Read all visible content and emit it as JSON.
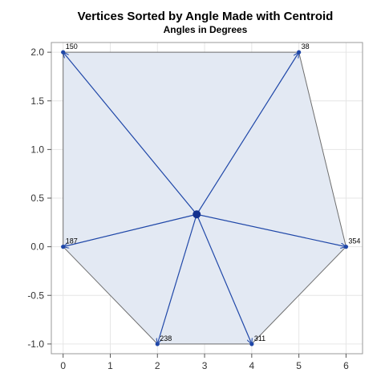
{
  "chart_data": {
    "type": "scatter",
    "title": "Vertices Sorted by Angle Made with Centroid",
    "subtitle": "Angles in Degrees",
    "xlabel": "",
    "ylabel": "",
    "xlim": [
      -0.25,
      6.35
    ],
    "ylim": [
      -1.1,
      2.1
    ],
    "x_ticks": [
      0,
      1,
      2,
      3,
      4,
      5,
      6
    ],
    "y_ticks": [
      -1.0,
      -0.5,
      0.0,
      0.5,
      1.0,
      1.5,
      2.0
    ],
    "x_tick_labels": [
      "0",
      "1",
      "2",
      "3",
      "4",
      "5",
      "6"
    ],
    "y_tick_labels": [
      "-1.0",
      "-0.5",
      "0.0",
      "0.5",
      "1.0",
      "1.5",
      "2.0"
    ],
    "grid": true,
    "centroid": {
      "x": 2.833,
      "y": 0.333
    },
    "vertices": [
      {
        "x": 5,
        "y": 2,
        "label": "38"
      },
      {
        "x": 0,
        "y": 2,
        "label": "150"
      },
      {
        "x": 0,
        "y": 0,
        "label": "187"
      },
      {
        "x": 2,
        "y": -1,
        "label": "238"
      },
      {
        "x": 4,
        "y": -1,
        "label": "311"
      },
      {
        "x": 6,
        "y": 0,
        "label": "354"
      }
    ],
    "colors": {
      "polygon_fill": "#e3e9f3",
      "polygon_stroke": "#6e6e6e",
      "line": "#1f47a8",
      "marker": "#1f47a8",
      "centroid": "#13318f",
      "grid": "#e6e6e6",
      "frame": "#9a9a9a"
    }
  }
}
